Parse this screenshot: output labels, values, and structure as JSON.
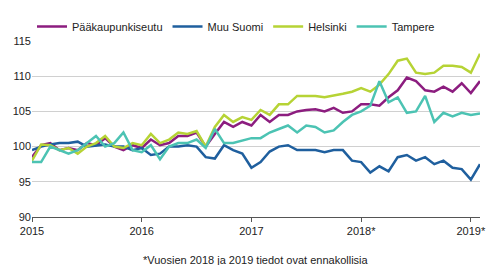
{
  "chart_data": {
    "type": "line",
    "annotation": "*Vuosien 2018 ja 2019 tiedot ovat ennakollisia",
    "categories": [
      "2015",
      null,
      null,
      null,
      null,
      null,
      null,
      null,
      null,
      null,
      null,
      null,
      "2016",
      null,
      null,
      null,
      null,
      null,
      null,
      null,
      null,
      null,
      null,
      null,
      "2017",
      null,
      null,
      null,
      null,
      null,
      null,
      null,
      null,
      null,
      null,
      null,
      "2018*",
      null,
      null,
      null,
      null,
      null,
      null,
      null,
      null,
      null,
      null,
      null,
      "2019*",
      null
    ],
    "series": [
      {
        "name": "Pääkaupunkiseutu",
        "color": "#8c1d7f",
        "values": [
          98.5,
          100.2,
          100.5,
          99.5,
          99.8,
          99.5,
          100.5,
          100.2,
          101.2,
          100,
          99.5,
          100.2,
          99.8,
          101,
          100.2,
          100.5,
          101.5,
          101.5,
          102,
          100,
          101.8,
          103.5,
          102.8,
          103.5,
          103,
          104.5,
          103.5,
          104.5,
          104.5,
          105,
          105.2,
          105.3,
          105,
          105.5,
          104.8,
          105,
          106,
          106,
          105.8,
          107,
          108,
          109.8,
          109.3,
          108,
          107.8,
          108.5,
          107.8,
          109,
          107.6,
          109.3
        ]
      },
      {
        "name": "Muu Suomi",
        "color": "#1f5f9e",
        "values": [
          99.5,
          100,
          100.3,
          100.5,
          100.5,
          100.7,
          100,
          100.2,
          100.3,
          100,
          100,
          99.5,
          99.8,
          98.8,
          99,
          100,
          100,
          100.2,
          100,
          98.5,
          98.3,
          100.2,
          99.5,
          99,
          97,
          97.8,
          99.3,
          100,
          100.2,
          99.5,
          99.5,
          99.5,
          99.2,
          99.5,
          99.5,
          98,
          97.8,
          96.3,
          97.2,
          96.5,
          98.5,
          98.8,
          98,
          98.5,
          97.5,
          98,
          97,
          96.8,
          95.3,
          97.5
        ]
      },
      {
        "name": "Helsinki",
        "color": "#b6d335",
        "values": [
          98,
          100.3,
          100.2,
          99.5,
          99.8,
          99,
          100,
          100.5,
          101.5,
          100,
          99.8,
          100.5,
          100.2,
          101.8,
          100.5,
          101,
          102,
          101.8,
          102.2,
          100,
          102.8,
          104.5,
          103.5,
          104.2,
          103.8,
          105.2,
          104.5,
          106,
          106,
          107.2,
          107.2,
          107.2,
          107,
          107.2,
          107.5,
          107.8,
          108.3,
          107.8,
          108.8,
          110.3,
          112.2,
          112.5,
          110.5,
          110.3,
          110.5,
          111.5,
          111.5,
          111.3,
          110.5,
          113.2
        ]
      },
      {
        "name": "Tampere",
        "color": "#4cc3b3",
        "values": [
          97.8,
          97.8,
          100,
          99.5,
          99,
          99.5,
          100.5,
          101.5,
          100,
          100.5,
          102,
          99.5,
          99.2,
          100.2,
          98.2,
          100,
          100.5,
          100.5,
          101,
          99.8,
          102.5,
          100.5,
          100.5,
          100.8,
          101.2,
          101.2,
          102,
          102.5,
          103,
          102,
          103,
          102.8,
          102,
          102.3,
          103.5,
          104.5,
          105,
          105.8,
          109.3,
          106.3,
          107,
          104.8,
          105,
          107.2,
          103.5,
          104.8,
          104.3,
          104.8,
          104.5,
          104.7
        ]
      }
    ],
    "ylim": [
      90,
      115
    ],
    "yticks": [
      90,
      95,
      100,
      105,
      110,
      115
    ],
    "grid": true,
    "legend": "top left"
  }
}
